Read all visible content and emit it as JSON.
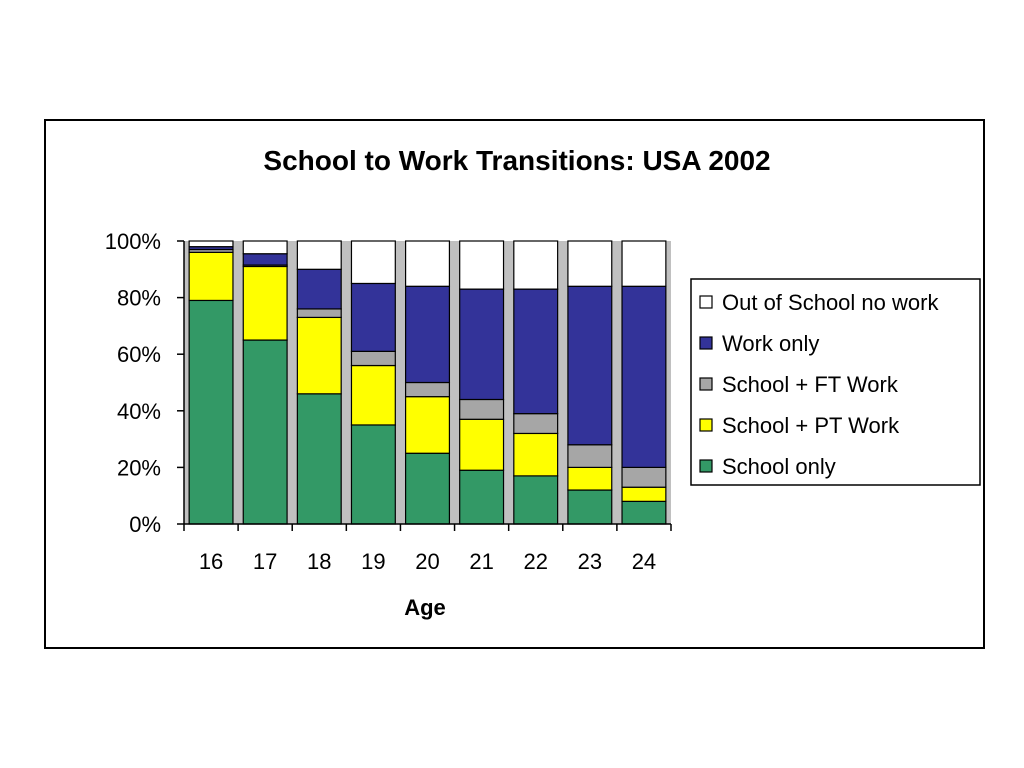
{
  "chart_data": {
    "type": "bar",
    "stacked": true,
    "percent_stacked": true,
    "title": "School to Work Transitions: USA 2002",
    "xlabel": "Age",
    "ylabel": "",
    "categories": [
      "16",
      "17",
      "18",
      "19",
      "20",
      "21",
      "22",
      "23",
      "24"
    ],
    "ylim": [
      0,
      100
    ],
    "yticks": [
      "0%",
      "20%",
      "40%",
      "60%",
      "80%",
      "100%"
    ],
    "plot_background": "#c0c0c0",
    "legend_position": "right",
    "series": [
      {
        "name": "School only",
        "color": "#339966",
        "values": [
          79,
          65,
          46,
          35,
          25,
          19,
          17,
          12,
          8
        ]
      },
      {
        "name": "School + PT Work",
        "color": "#ffff00",
        "values": [
          17,
          26,
          27,
          21,
          20,
          18,
          15,
          8,
          5
        ]
      },
      {
        "name": "School + FT Work",
        "color": "#a6a6a6",
        "values": [
          1,
          0.5,
          3,
          5,
          5,
          7,
          7,
          8,
          7
        ]
      },
      {
        "name": "Work only",
        "color": "#333399",
        "values": [
          1,
          4,
          14,
          24,
          34,
          39,
          44,
          56,
          64
        ]
      },
      {
        "name": "Out of School no work",
        "color": "#ffffff",
        "values": [
          2,
          4.5,
          10,
          15,
          16,
          17,
          17,
          16,
          16
        ]
      }
    ],
    "legend_order": [
      "Out of School no work",
      "Work only",
      "School + FT Work",
      "School + PT Work",
      "School only"
    ]
  }
}
